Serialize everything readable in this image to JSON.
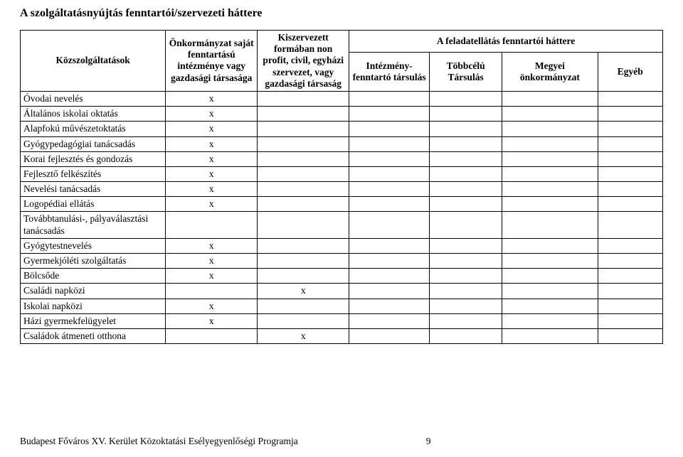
{
  "title": "A szolgáltatásnyújtás fenntartói/szervezeti háttere",
  "table": {
    "header_row1_col0": "Közszolgáltatások",
    "header_row1_span": "A feladatellátás fenntartói háttere",
    "header_cols": [
      "Önkormányzat saját fenntartású intézménye vagy gazdasági társasága",
      "Kiszervezett formában non profit, civil, egyházi szervezet, vagy gazdasági társaság",
      "Intézmény-fenntartó társulás",
      "Többcélú Társulás",
      "Megyei önkormányzat",
      "Egyéb"
    ],
    "rows": [
      {
        "label": "Óvodai nevelés",
        "marks": [
          "x",
          "",
          "",
          "",
          "",
          ""
        ]
      },
      {
        "label": "Általános iskolai oktatás",
        "marks": [
          "x",
          "",
          "",
          "",
          "",
          ""
        ]
      },
      {
        "label": "Alapfokú művészetoktatás",
        "marks": [
          "x",
          "",
          "",
          "",
          "",
          ""
        ]
      },
      {
        "label": "Gyógypedagógiai tanácsadás",
        "marks": [
          "x",
          "",
          "",
          "",
          "",
          ""
        ]
      },
      {
        "label": "Korai fejlesztés és gondozás",
        "marks": [
          "x",
          "",
          "",
          "",
          "",
          ""
        ]
      },
      {
        "label": "Fejlesztő felkészítés",
        "marks": [
          "x",
          "",
          "",
          "",
          "",
          ""
        ]
      },
      {
        "label": "Nevelési tanácsadás",
        "marks": [
          "x",
          "",
          "",
          "",
          "",
          ""
        ]
      },
      {
        "label": "Logopédiai ellátás",
        "marks": [
          "x",
          "",
          "",
          "",
          "",
          ""
        ]
      },
      {
        "label": "Továbbtanulási-, pályaválasztási tanácsadás",
        "marks": [
          "",
          "",
          "",
          "",
          "",
          ""
        ]
      },
      {
        "label": "Gyógytestnevelés",
        "marks": [
          "x",
          "",
          "",
          "",
          "",
          ""
        ]
      },
      {
        "label": "Gyermekjóléti szolgáltatás",
        "marks": [
          "x",
          "",
          "",
          "",
          "",
          ""
        ]
      },
      {
        "label": "Bölcsőde",
        "marks": [
          "x",
          "",
          "",
          "",
          "",
          ""
        ]
      },
      {
        "label": "Családi napközi",
        "marks": [
          "",
          "x",
          "",
          "",
          "",
          ""
        ]
      },
      {
        "label": "Iskolai napközi",
        "marks": [
          "x",
          "",
          "",
          "",
          "",
          ""
        ]
      },
      {
        "label": "Házi gyermekfelügyelet",
        "marks": [
          "x",
          "",
          "",
          "",
          "",
          ""
        ]
      },
      {
        "label": "Családok átmeneti otthona",
        "marks": [
          "",
          "x",
          "",
          "",
          "",
          ""
        ]
      }
    ]
  },
  "footer": {
    "text": "Budapest Főváros XV. Kerület Közoktatási Esélyegyenlőségi Programja",
    "page": "9"
  }
}
